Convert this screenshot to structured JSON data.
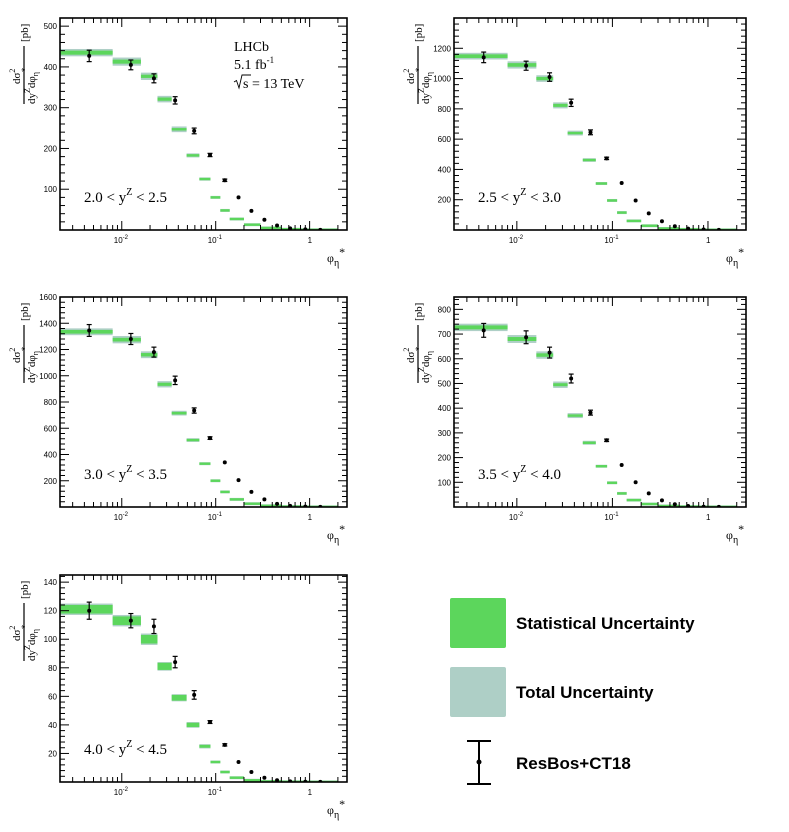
{
  "colors": {
    "statistical": "#5cd65c",
    "total": "#aecfc6",
    "marker": "#000000"
  },
  "legend": {
    "statistical": "Statistical Uncertainty",
    "total": "Total Uncertainty",
    "model": "ResBos+CT18"
  },
  "experiment": {
    "name": "LHCb",
    "lumi": "5.1 fb",
    "lumi_sup": "-1",
    "energy": "s = 13 TeV"
  },
  "axis_text": {
    "x_base": "φ",
    "x_sub": "η",
    "x_star": "*",
    "y_num": "dσ",
    "y_num_sup": "2",
    "y_den_d1": "dy",
    "y_den_sup": "Z",
    "y_den_d2": "dφ",
    "y_den_sub": "η",
    "y_den_star": "*",
    "y_unit": "[pb]",
    "x_ticks": [
      "10",
      "-2",
      "10",
      "-1",
      "1"
    ]
  },
  "chart_data": [
    {
      "type": "bar",
      "title": "",
      "range_label": {
        "pre": "2.0 < y",
        "sup": "Z",
        "post": " < 2.5"
      },
      "xlabel": "φη*",
      "ylabel": "dσ²/dyZdφη* [pb]",
      "xscale": "log",
      "xlim": [
        0.0022,
        2.5
      ],
      "ylim": [
        0,
        520
      ],
      "yticks": [
        100,
        200,
        300,
        400,
        500
      ],
      "show_experiment": true,
      "bins": [
        {
          "lo": 0.002,
          "hi": 0.008,
          "value": 435,
          "stat": 5,
          "total": 9
        },
        {
          "lo": 0.008,
          "hi": 0.016,
          "value": 413,
          "stat": 5,
          "total": 10
        },
        {
          "lo": 0.016,
          "hi": 0.024,
          "value": 377,
          "stat": 4,
          "total": 9
        },
        {
          "lo": 0.024,
          "hi": 0.034,
          "value": 321,
          "stat": 4,
          "total": 8
        },
        {
          "lo": 0.034,
          "hi": 0.049,
          "value": 247,
          "stat": 3,
          "total": 7
        },
        {
          "lo": 0.049,
          "hi": 0.067,
          "value": 183,
          "stat": 3,
          "total": 5
        },
        {
          "lo": 0.067,
          "hi": 0.088,
          "value": 125,
          "stat": 2,
          "total": 4
        },
        {
          "lo": 0.088,
          "hi": 0.112,
          "value": 80,
          "stat": 1.5,
          "total": 3
        },
        {
          "lo": 0.112,
          "hi": 0.141,
          "value": 48,
          "stat": 1,
          "total": 2
        },
        {
          "lo": 0.141,
          "hi": 0.2,
          "value": 27,
          "stat": 1,
          "total": 1.5
        },
        {
          "lo": 0.2,
          "hi": 0.3,
          "value": 13,
          "stat": 0.5,
          "total": 1
        },
        {
          "lo": 0.3,
          "hi": 0.5,
          "value": 5,
          "stat": 0.3,
          "total": 0.5
        },
        {
          "lo": 0.5,
          "hi": 0.8,
          "value": 1.8,
          "stat": 0.1,
          "total": 0.2
        },
        {
          "lo": 0.8,
          "hi": 2.0,
          "value": 0.5,
          "stat": 0.05,
          "total": 0.1
        }
      ],
      "model": [
        {
          "x": 0.0045,
          "y": 427,
          "err": 14
        },
        {
          "x": 0.0125,
          "y": 405,
          "err": 12
        },
        {
          "x": 0.022,
          "y": 372,
          "err": 11
        },
        {
          "x": 0.037,
          "y": 318,
          "err": 9
        },
        {
          "x": 0.059,
          "y": 243,
          "err": 7
        },
        {
          "x": 0.087,
          "y": 184,
          "err": 4
        },
        {
          "x": 0.125,
          "y": 122,
          "err": 3
        },
        {
          "x": 0.175,
          "y": 80,
          "err": 2
        },
        {
          "x": 0.24,
          "y": 47,
          "err": 1
        },
        {
          "x": 0.33,
          "y": 25,
          "err": 1
        },
        {
          "x": 0.45,
          "y": 11,
          "err": 0.5
        },
        {
          "x": 0.62,
          "y": 4,
          "err": 0.3
        },
        {
          "x": 0.9,
          "y": 1.5,
          "err": 0.1
        },
        {
          "x": 1.3,
          "y": 0.4,
          "err": 0.05
        }
      ]
    },
    {
      "type": "bar",
      "title": "",
      "range_label": {
        "pre": "2.5 < y",
        "sup": "Z",
        "post": " < 3.0"
      },
      "xlabel": "φη*",
      "ylabel": "dσ²/dyZdφη* [pb]",
      "xscale": "log",
      "xlim": [
        0.0022,
        2.5
      ],
      "ylim": [
        0,
        1400
      ],
      "yticks": [
        200,
        400,
        600,
        800,
        1000,
        1200
      ],
      "show_experiment": false,
      "bins": [
        {
          "lo": 0.002,
          "hi": 0.008,
          "value": 1148,
          "stat": 12,
          "total": 22
        },
        {
          "lo": 0.008,
          "hi": 0.016,
          "value": 1090,
          "stat": 12,
          "total": 24
        },
        {
          "lo": 0.016,
          "hi": 0.024,
          "value": 1000,
          "stat": 11,
          "total": 22
        },
        {
          "lo": 0.024,
          "hi": 0.034,
          "value": 823,
          "stat": 10,
          "total": 20
        },
        {
          "lo": 0.034,
          "hi": 0.049,
          "value": 640,
          "stat": 8,
          "total": 16
        },
        {
          "lo": 0.049,
          "hi": 0.067,
          "value": 462,
          "stat": 6,
          "total": 12
        },
        {
          "lo": 0.067,
          "hi": 0.088,
          "value": 307,
          "stat": 5,
          "total": 9
        },
        {
          "lo": 0.088,
          "hi": 0.112,
          "value": 195,
          "stat": 4,
          "total": 7
        },
        {
          "lo": 0.112,
          "hi": 0.141,
          "value": 115,
          "stat": 3,
          "total": 5
        },
        {
          "lo": 0.141,
          "hi": 0.2,
          "value": 60,
          "stat": 2,
          "total": 3
        },
        {
          "lo": 0.2,
          "hi": 0.3,
          "value": 28,
          "stat": 1,
          "total": 2
        },
        {
          "lo": 0.3,
          "hi": 0.5,
          "value": 10,
          "stat": 0.5,
          "total": 1
        },
        {
          "lo": 0.5,
          "hi": 0.8,
          "value": 4,
          "stat": 0.2,
          "total": 0.4
        },
        {
          "lo": 0.8,
          "hi": 2.0,
          "value": 1,
          "stat": 0.1,
          "total": 0.2
        }
      ],
      "model": [
        {
          "x": 0.0045,
          "y": 1140,
          "err": 35
        },
        {
          "x": 0.0125,
          "y": 1085,
          "err": 30
        },
        {
          "x": 0.022,
          "y": 1010,
          "err": 28
        },
        {
          "x": 0.037,
          "y": 840,
          "err": 24
        },
        {
          "x": 0.059,
          "y": 645,
          "err": 16
        },
        {
          "x": 0.087,
          "y": 473,
          "err": 8
        },
        {
          "x": 0.125,
          "y": 310,
          "err": 6
        },
        {
          "x": 0.175,
          "y": 195,
          "err": 4
        },
        {
          "x": 0.24,
          "y": 110,
          "err": 3
        },
        {
          "x": 0.33,
          "y": 58,
          "err": 2
        },
        {
          "x": 0.45,
          "y": 25,
          "err": 1
        },
        {
          "x": 0.62,
          "y": 9,
          "err": 0.5
        },
        {
          "x": 0.9,
          "y": 3,
          "err": 0.2
        },
        {
          "x": 1.3,
          "y": 1,
          "err": 0.1
        }
      ]
    },
    {
      "type": "bar",
      "title": "",
      "range_label": {
        "pre": "3.0 < y",
        "sup": "Z",
        "post": " < 3.5"
      },
      "xlabel": "φη*",
      "ylabel": "dσ²/dyZdφη* [pb]",
      "xscale": "log",
      "xlim": [
        0.0022,
        2.5
      ],
      "ylim": [
        0,
        1600
      ],
      "yticks": [
        200,
        400,
        600,
        800,
        1000,
        1200,
        1400,
        1600
      ],
      "show_experiment": false,
      "bins": [
        {
          "lo": 0.002,
          "hi": 0.008,
          "value": 1335,
          "stat": 14,
          "total": 26
        },
        {
          "lo": 0.008,
          "hi": 0.016,
          "value": 1275,
          "stat": 14,
          "total": 28
        },
        {
          "lo": 0.016,
          "hi": 0.024,
          "value": 1160,
          "stat": 13,
          "total": 26
        },
        {
          "lo": 0.024,
          "hi": 0.034,
          "value": 935,
          "stat": 12,
          "total": 24
        },
        {
          "lo": 0.034,
          "hi": 0.049,
          "value": 715,
          "stat": 10,
          "total": 18
        },
        {
          "lo": 0.049,
          "hi": 0.067,
          "value": 510,
          "stat": 8,
          "total": 14
        },
        {
          "lo": 0.067,
          "hi": 0.088,
          "value": 330,
          "stat": 6,
          "total": 10
        },
        {
          "lo": 0.088,
          "hi": 0.112,
          "value": 200,
          "stat": 4,
          "total": 7
        },
        {
          "lo": 0.112,
          "hi": 0.141,
          "value": 115,
          "stat": 3,
          "total": 5
        },
        {
          "lo": 0.141,
          "hi": 0.2,
          "value": 58,
          "stat": 2,
          "total": 3
        },
        {
          "lo": 0.2,
          "hi": 0.3,
          "value": 25,
          "stat": 1,
          "total": 2
        },
        {
          "lo": 0.3,
          "hi": 0.5,
          "value": 9,
          "stat": 0.5,
          "total": 1
        },
        {
          "lo": 0.5,
          "hi": 0.8,
          "value": 3,
          "stat": 0.2,
          "total": 0.4
        },
        {
          "lo": 0.8,
          "hi": 2.0,
          "value": 1,
          "stat": 0.1,
          "total": 0.2
        }
      ],
      "model": [
        {
          "x": 0.0045,
          "y": 1345,
          "err": 45
        },
        {
          "x": 0.0125,
          "y": 1280,
          "err": 42
        },
        {
          "x": 0.022,
          "y": 1180,
          "err": 38
        },
        {
          "x": 0.037,
          "y": 965,
          "err": 32
        },
        {
          "x": 0.059,
          "y": 735,
          "err": 20
        },
        {
          "x": 0.087,
          "y": 525,
          "err": 10
        },
        {
          "x": 0.125,
          "y": 340,
          "err": 7
        },
        {
          "x": 0.175,
          "y": 205,
          "err": 5
        },
        {
          "x": 0.24,
          "y": 115,
          "err": 3
        },
        {
          "x": 0.33,
          "y": 58,
          "err": 2
        },
        {
          "x": 0.45,
          "y": 24,
          "err": 1
        },
        {
          "x": 0.62,
          "y": 9,
          "err": 0.5
        },
        {
          "x": 0.9,
          "y": 3,
          "err": 0.2
        },
        {
          "x": 1.3,
          "y": 1,
          "err": 0.1
        }
      ]
    },
    {
      "type": "bar",
      "title": "",
      "range_label": {
        "pre": "3.5 < y",
        "sup": "Z",
        "post": " < 4.0"
      },
      "xlabel": "φη*",
      "ylabel": "dσ²/dyZdφη* [pb]",
      "xscale": "log",
      "xlim": [
        0.0022,
        2.5
      ],
      "ylim": [
        0,
        850
      ],
      "yticks": [
        100,
        200,
        300,
        400,
        500,
        600,
        700,
        800
      ],
      "show_experiment": false,
      "bins": [
        {
          "lo": 0.002,
          "hi": 0.008,
          "value": 727,
          "stat": 8,
          "total": 15
        },
        {
          "lo": 0.008,
          "hi": 0.016,
          "value": 680,
          "stat": 8,
          "total": 16
        },
        {
          "lo": 0.016,
          "hi": 0.024,
          "value": 615,
          "stat": 7,
          "total": 15
        },
        {
          "lo": 0.024,
          "hi": 0.034,
          "value": 495,
          "stat": 6,
          "total": 13
        },
        {
          "lo": 0.034,
          "hi": 0.049,
          "value": 370,
          "stat": 5,
          "total": 10
        },
        {
          "lo": 0.049,
          "hi": 0.067,
          "value": 260,
          "stat": 4,
          "total": 8
        },
        {
          "lo": 0.067,
          "hi": 0.088,
          "value": 165,
          "stat": 3,
          "total": 5
        },
        {
          "lo": 0.088,
          "hi": 0.112,
          "value": 98,
          "stat": 2,
          "total": 4
        },
        {
          "lo": 0.112,
          "hi": 0.141,
          "value": 55,
          "stat": 1.5,
          "total": 3
        },
        {
          "lo": 0.141,
          "hi": 0.2,
          "value": 28,
          "stat": 1,
          "total": 2
        },
        {
          "lo": 0.2,
          "hi": 0.3,
          "value": 12,
          "stat": 0.5,
          "total": 1
        },
        {
          "lo": 0.3,
          "hi": 0.5,
          "value": 4,
          "stat": 0.3,
          "total": 0.5
        },
        {
          "lo": 0.5,
          "hi": 0.8,
          "value": 1.5,
          "stat": 0.1,
          "total": 0.2
        },
        {
          "lo": 0.8,
          "hi": 2.0,
          "value": 0.5,
          "stat": 0.05,
          "total": 0.1
        }
      ],
      "model": [
        {
          "x": 0.0045,
          "y": 715,
          "err": 28
        },
        {
          "x": 0.0125,
          "y": 687,
          "err": 26
        },
        {
          "x": 0.022,
          "y": 625,
          "err": 22
        },
        {
          "x": 0.037,
          "y": 520,
          "err": 18
        },
        {
          "x": 0.059,
          "y": 382,
          "err": 10
        },
        {
          "x": 0.087,
          "y": 270,
          "err": 5
        },
        {
          "x": 0.125,
          "y": 170,
          "err": 4
        },
        {
          "x": 0.175,
          "y": 100,
          "err": 3
        },
        {
          "x": 0.24,
          "y": 55,
          "err": 2
        },
        {
          "x": 0.33,
          "y": 27,
          "err": 1
        },
        {
          "x": 0.45,
          "y": 11,
          "err": 0.5
        },
        {
          "x": 0.62,
          "y": 4,
          "err": 0.3
        },
        {
          "x": 0.9,
          "y": 1.2,
          "err": 0.1
        },
        {
          "x": 1.3,
          "y": 0.4,
          "err": 0.05
        }
      ]
    },
    {
      "type": "bar",
      "title": "",
      "range_label": {
        "pre": "4.0 < y",
        "sup": "Z",
        "post": " < 4.5"
      },
      "xlabel": "φη*",
      "ylabel": "dσ²/dyZdφη* [pb]",
      "xscale": "log",
      "xlim": [
        0.0022,
        2.5
      ],
      "ylim": [
        0,
        145
      ],
      "yticks": [
        20,
        40,
        60,
        80,
        100,
        120,
        140
      ],
      "show_experiment": false,
      "bins": [
        {
          "lo": 0.002,
          "hi": 0.008,
          "value": 121,
          "stat": 3,
          "total": 4
        },
        {
          "lo": 0.008,
          "hi": 0.016,
          "value": 113,
          "stat": 3,
          "total": 4
        },
        {
          "lo": 0.016,
          "hi": 0.024,
          "value": 100,
          "stat": 3,
          "total": 4
        },
        {
          "lo": 0.024,
          "hi": 0.034,
          "value": 81,
          "stat": 2.5,
          "total": 3
        },
        {
          "lo": 0.034,
          "hi": 0.049,
          "value": 59,
          "stat": 2,
          "total": 2.5
        },
        {
          "lo": 0.049,
          "hi": 0.067,
          "value": 40,
          "stat": 1.5,
          "total": 2
        },
        {
          "lo": 0.067,
          "hi": 0.088,
          "value": 25,
          "stat": 1,
          "total": 1.5
        },
        {
          "lo": 0.088,
          "hi": 0.112,
          "value": 14,
          "stat": 0.8,
          "total": 1
        },
        {
          "lo": 0.112,
          "hi": 0.141,
          "value": 7,
          "stat": 0.5,
          "total": 0.7
        },
        {
          "lo": 0.141,
          "hi": 0.2,
          "value": 3,
          "stat": 0.3,
          "total": 0.4
        },
        {
          "lo": 0.2,
          "hi": 0.3,
          "value": 1.2,
          "stat": 0.1,
          "total": 0.2
        },
        {
          "lo": 0.3,
          "hi": 0.5,
          "value": 0.4,
          "stat": 0.05,
          "total": 0.1
        },
        {
          "lo": 0.5,
          "hi": 0.8,
          "value": 0.15,
          "stat": 0.02,
          "total": 0.03
        },
        {
          "lo": 0.8,
          "hi": 2.0,
          "value": 0.05,
          "stat": 0.01,
          "total": 0.01
        }
      ],
      "model": [
        {
          "x": 0.0045,
          "y": 120,
          "err": 6
        },
        {
          "x": 0.0125,
          "y": 113,
          "err": 5
        },
        {
          "x": 0.022,
          "y": 109,
          "err": 5
        },
        {
          "x": 0.037,
          "y": 84,
          "err": 4
        },
        {
          "x": 0.059,
          "y": 61,
          "err": 3
        },
        {
          "x": 0.087,
          "y": 42,
          "err": 1
        },
        {
          "x": 0.125,
          "y": 26,
          "err": 0.8
        },
        {
          "x": 0.175,
          "y": 14,
          "err": 0.5
        },
        {
          "x": 0.24,
          "y": 7,
          "err": 0.3
        },
        {
          "x": 0.33,
          "y": 3,
          "err": 0.2
        },
        {
          "x": 0.45,
          "y": 1.2,
          "err": 0.1
        },
        {
          "x": 0.62,
          "y": 0.4,
          "err": 0.05
        },
        {
          "x": 0.9,
          "y": 0.15,
          "err": 0.02
        },
        {
          "x": 1.3,
          "y": 0.05,
          "err": 0.01
        }
      ]
    }
  ]
}
